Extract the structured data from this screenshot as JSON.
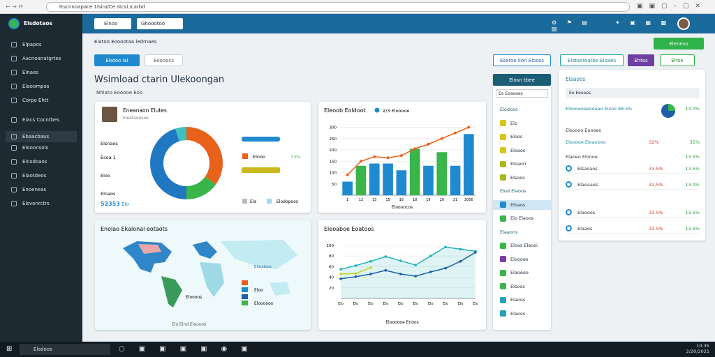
{
  "browser": {
    "url": "ttscnnoapace 1lsiro/Ce stcsl /carbd"
  },
  "sidebar": {
    "brand": "Elsdotaos",
    "items": [
      "Elpapos",
      "Aacnoanatgrtes",
      "Elnaes",
      "Elaoompos",
      "Corpo Ehtt",
      "Elacs Cocntbes",
      "Ebaacbaus",
      "Elooonsols",
      "Elcodoaos",
      "Elaotdeos",
      "Enoeneas",
      "Elsvonrctrs"
    ]
  },
  "header": {
    "dropdowns": [
      "Elnoo",
      "Ghoootoo"
    ],
    "button": "Eleneso"
  },
  "toolbar": {
    "breadcrumb": "Elatoo Eooootaa ledrnaes",
    "filter": "Elatoo lal",
    "select": "Eoooocs",
    "buttons": [
      "Eseroe Ilon Elosos",
      "Elotsereatbe Eloaes",
      "Ehtos",
      "Ehoe"
    ]
  },
  "title": "Wsimload ctarin Ulekoongan",
  "subtitle": "Nhiato Eooooe Eoo",
  "donut_card": {
    "name": "Eneanaon Elutes",
    "role": "Eleotaoosee",
    "left_labels": [
      "Elsnaos",
      "Ecoa 1",
      "Eloo",
      "Elnaos"
    ],
    "total": "52353",
    "total_unit": "Elo",
    "legend_label": "Elnoo",
    "legend_value": "13%",
    "footer": [
      "Ela",
      "Elodopoos"
    ],
    "segments": [
      35,
      15,
      45,
      5
    ],
    "colors": [
      "#e8621c",
      "#3ab54a",
      "#1f78c1",
      "#3cc0c0"
    ]
  },
  "bar_chart": {
    "type": "bar",
    "title": "Eleoob Eoldoot",
    "legend": "2/3 Elooooe",
    "xlabel": "Eloooocos",
    "categories": [
      "1",
      "12",
      "13",
      "15",
      "16",
      "18",
      "19",
      "20",
      "21",
      "2000"
    ],
    "values": [
      60,
      130,
      140,
      140,
      110,
      205,
      130,
      190,
      130,
      270
    ],
    "colors": [
      "#1f8ad0",
      "#3ab54a",
      "#1f8ad0",
      "#1f8ad0",
      "#1f8ad0",
      "#3ab54a",
      "#1f8ad0",
      "#3ab54a",
      "#1f8ad0",
      "#1f8ad0"
    ],
    "line": {
      "color": "#e8621c",
      "values": [
        90,
        150,
        170,
        165,
        175,
        205,
        225,
        250,
        275,
        300
      ]
    },
    "ylim": [
      0,
      320
    ],
    "yticks": [
      50,
      100,
      150,
      200,
      250,
      300
    ]
  },
  "map_card": {
    "title": "Enolao Ekalonal eotaots",
    "caption": "Eloodoos",
    "legend": [
      "Eloo",
      "Eloooos",
      "Elooooos"
    ],
    "footer": "Elo Elnd Eloooos"
  },
  "line_chart": {
    "type": "line",
    "title": "Eleoaboe Eoatoos",
    "footer": "Eloooooe Enoos",
    "categories": [
      "Elo",
      "Elo",
      "Elo",
      "Elo",
      "Elo",
      "Elo",
      "Elo",
      "Elo",
      "Elo",
      "Elo"
    ],
    "series": [
      {
        "name": "Elaoos",
        "color": "#22b3b8",
        "values": [
          55,
          62,
          70,
          79,
          71,
          63,
          80,
          97,
          93,
          89
        ]
      },
      {
        "name": "Elooos",
        "color": "#1f5fa8",
        "values": [
          37,
          41,
          46,
          53,
          46,
          42,
          50,
          57,
          70,
          87
        ]
      },
      {
        "name": "Eloo",
        "color": "#c8d21e",
        "values": [
          46,
          47,
          58,
          null,
          null,
          null,
          null,
          null,
          null,
          null
        ]
      }
    ],
    "ylim": [
      0,
      100
    ],
    "yticks": [
      20,
      40,
      60,
      80,
      100
    ]
  },
  "list": {
    "header": "Elosn tbee",
    "select": "Eo Eoaoaes",
    "items": [
      [
        "Elodoos",
        ""
      ],
      [
        "Elo",
        "#d8c51a"
      ],
      [
        "Eloos",
        "#d8c51a"
      ],
      [
        "Eloaos",
        "#d8c51a"
      ],
      [
        "Eloaorr",
        "#a9b81c"
      ],
      [
        "Elsoos",
        "#a9b81c"
      ],
      [
        "Elod Elaoos",
        ""
      ],
      [
        "Eloaos",
        "#1f8ad0"
      ],
      [
        "Elo Elaoos",
        "#3ab54a"
      ],
      [
        "Elaaons",
        ""
      ],
      [
        "Eloas Elaooi",
        "#3ab54a"
      ],
      [
        "Eloooes",
        "#7a3aa8"
      ],
      [
        "Elaoeoo",
        "#3ab54a"
      ],
      [
        "Elsoos",
        "#3ab54a"
      ],
      [
        "Elaoos",
        "#22a3b8"
      ],
      [
        "Elaoos",
        "#22a3b8"
      ]
    ]
  },
  "panel": {
    "title": "Elsaoos",
    "search": "Eo Eeoaes",
    "rows": [
      [
        "Eloooeoaeooaao Elsoo 88.5%",
        "",
        "13.0%"
      ],
      [
        "Elsoooo Eoooes",
        "",
        ""
      ],
      [
        "Elooooe Eloaoooo",
        "32%",
        "35%"
      ],
      [
        "Elaoeo Elonoe",
        "",
        "13.5%"
      ],
      [
        "Elsaoaos",
        "33.5%",
        "13.5%"
      ],
      [
        "Elaoaaes",
        "32.5%",
        "13.0%"
      ],
      [
        "Elaooes",
        "33.5%",
        "13.5%"
      ],
      [
        "Elaaos",
        "33.5%",
        "13.5%"
      ]
    ]
  },
  "taskbar": {
    "search": "Elsdoos",
    "time": "10:35",
    "date": "2/20/2021"
  }
}
